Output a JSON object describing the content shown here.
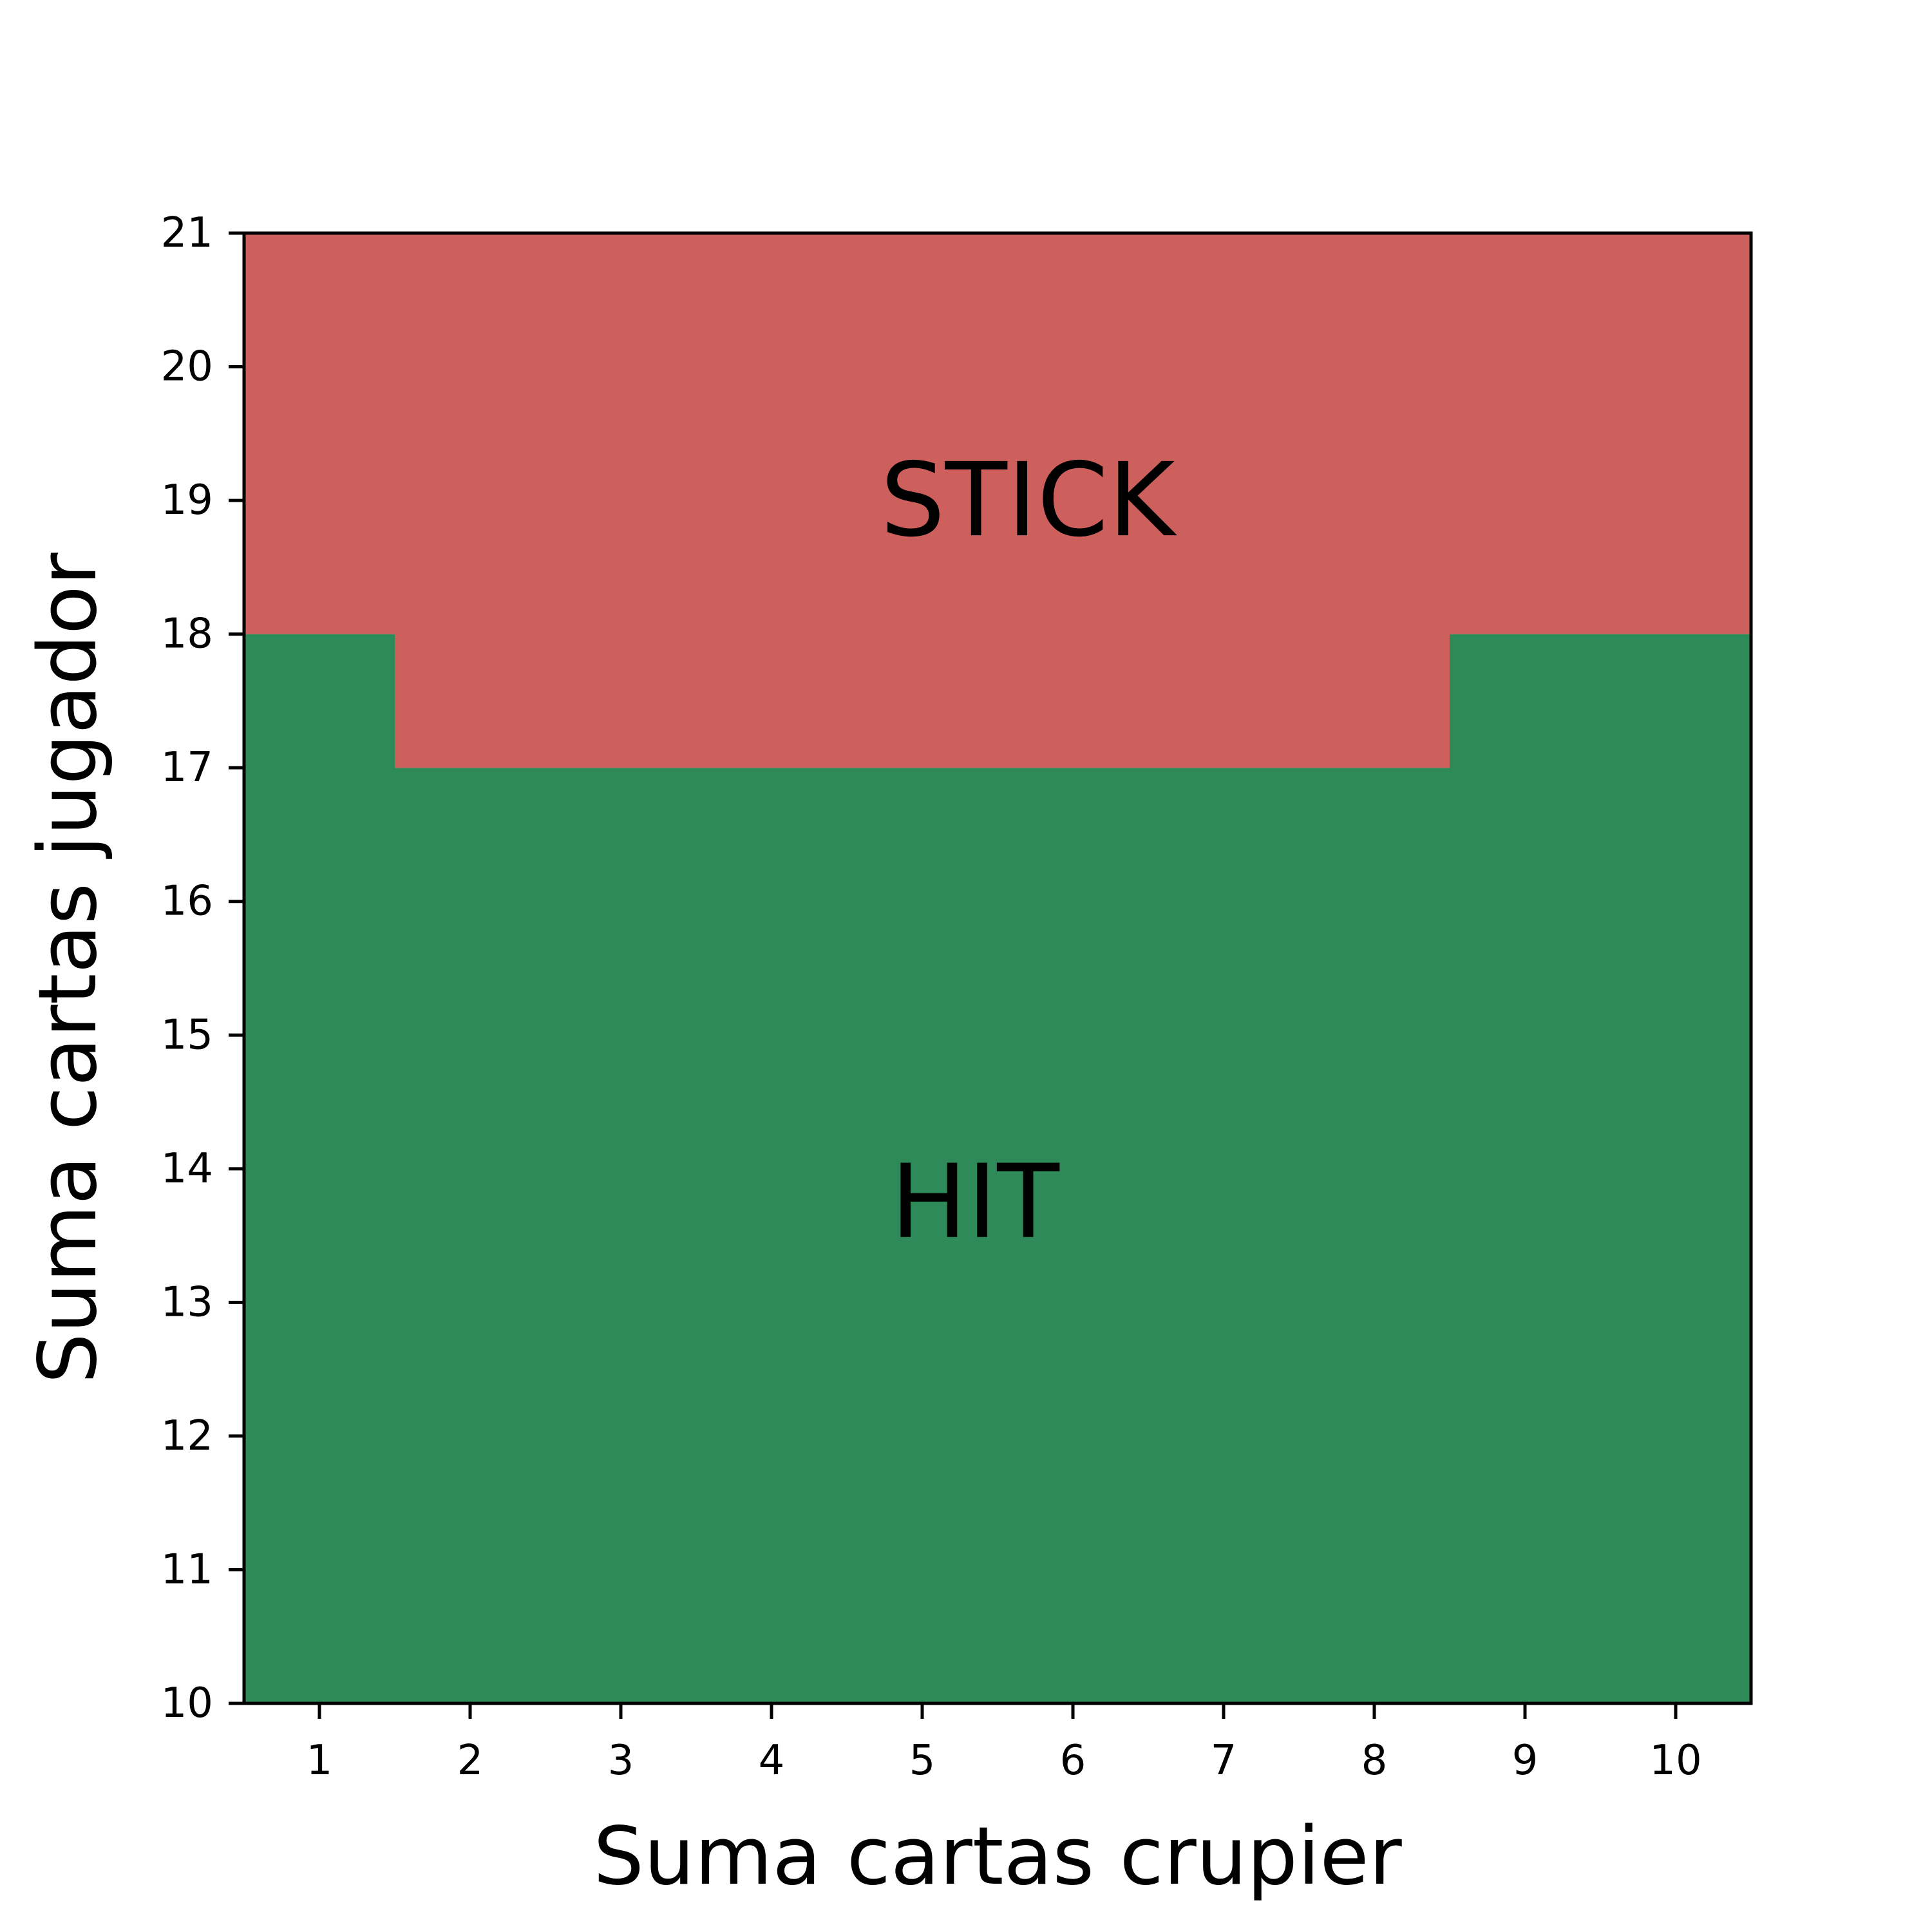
{
  "chart_data": {
    "type": "heatmap",
    "title": "",
    "xlabel": "Suma cartas crupier",
    "ylabel": "Suma cartas jugador",
    "xlim": [
      0.5,
      10.5
    ],
    "ylim": [
      10,
      21
    ],
    "xticks": [
      1,
      2,
      3,
      4,
      5,
      6,
      7,
      8,
      9,
      10
    ],
    "yticks": [
      10,
      11,
      12,
      13,
      14,
      15,
      16,
      17,
      18,
      19,
      20,
      21
    ],
    "categories": [
      1,
      2,
      3,
      4,
      5,
      6,
      7,
      8,
      9,
      10
    ],
    "series": [
      {
        "name": "STICK",
        "color": "#cd5f5d",
        "min_player_sum": [
          18,
          17,
          17,
          17,
          17,
          17,
          17,
          17,
          18,
          18
        ]
      },
      {
        "name": "HIT",
        "color": "#2f8a59"
      }
    ],
    "annotations": [
      {
        "text": "STICK",
        "x": 5.7,
        "y": 19
      },
      {
        "text": "HIT",
        "x": 5.35,
        "y": 13.75
      }
    ],
    "grid": false,
    "legend": "none"
  }
}
